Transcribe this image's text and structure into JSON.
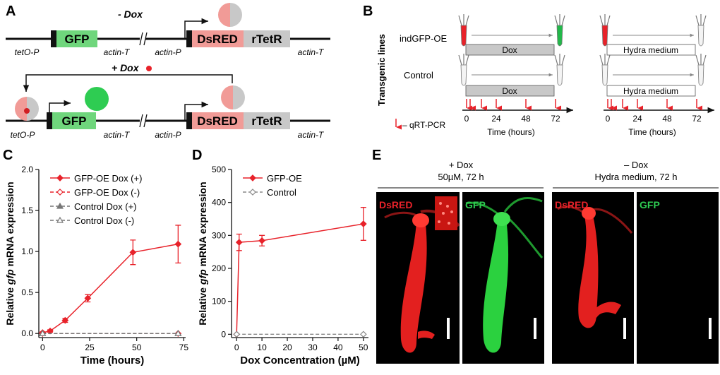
{
  "panel_letters": {
    "A": "A",
    "B": "B",
    "C": "C",
    "D": "D",
    "E": "E"
  },
  "panel_a": {
    "minus_dox": "- Dox",
    "plus_dox": "+ Dox",
    "gfp": "GFP",
    "dsred": "DsRED",
    "rtetr": "rTetR",
    "teto_p": "tetO-P",
    "actin_t": "actin-T",
    "actin_p": "actin-P"
  },
  "panel_b": {
    "side_label": "Transgenic lines",
    "row1": "indGFP-OE",
    "row2": "Control",
    "dox": "Dox",
    "hydra_medium": "Hydra medium",
    "legend": "– qRT-PCR",
    "xlabel": "Time (hours)",
    "ticks": [
      "0",
      "24",
      "48",
      "72"
    ]
  },
  "panel_e": {
    "plus_dox_l1": "+ Dox",
    "plus_dox_l2": "50µM, 72 h",
    "minus_dox_l1": "– Dox",
    "minus_dox_l2": "Hydra medium, 72 h",
    "tile_labels": [
      "DsRED",
      "GFP",
      "DsRED",
      "GFP"
    ]
  },
  "colors": {
    "red": "#e8222a",
    "green": "#2ecc52",
    "gfp_box": "#6fd67c",
    "dsred_box": "#f19b97",
    "rtetr_box": "#c8c8c8",
    "gray": "#888888"
  },
  "chart_data": [
    {
      "type": "line",
      "xlabel": "Time (hours)",
      "ylabel_prefix": "Relative ",
      "ylabel_italic": "gfp",
      "ylabel_suffix": " mRNA expression",
      "xlim": [
        -2,
        76
      ],
      "ylim": [
        -0.05,
        2.0
      ],
      "xticks": [
        0,
        25,
        50,
        75
      ],
      "yticks": [
        0.0,
        0.5,
        1.0,
        1.5,
        2.0
      ],
      "ytick_labels": [
        "0.0",
        "0.5",
        "1.0",
        "1.5",
        "2.0"
      ],
      "legend_position": "top-left",
      "series": [
        {
          "name": "GFP-OE Dox (+)",
          "style": "solid",
          "marker": "filled-diamond",
          "color": "#e8222a",
          "x": [
            0,
            4,
            12,
            24,
            48,
            72
          ],
          "y": [
            0.01,
            0.03,
            0.16,
            0.43,
            0.99,
            1.09
          ],
          "err": [
            0.01,
            0.015,
            0.025,
            0.045,
            0.15,
            0.23
          ]
        },
        {
          "name": "GFP-OE Dox (-)",
          "style": "dashed",
          "marker": "open-diamond",
          "color": "#e8222a",
          "x": [
            0,
            72
          ],
          "y": [
            0.0,
            0.0
          ],
          "err": [
            0,
            0
          ]
        },
        {
          "name": "Control Dox (+)",
          "style": "dashed",
          "marker": "filled-triangle",
          "color": "#777777",
          "x": [
            0,
            72
          ],
          "y": [
            0.0,
            0.0
          ],
          "err": [
            0,
            0
          ]
        },
        {
          "name": "Control Dox (-)",
          "style": "dashed",
          "marker": "open-triangle",
          "color": "#777777",
          "x": [
            0,
            72
          ],
          "y": [
            0.0,
            0.0
          ],
          "err": [
            0,
            0
          ]
        }
      ]
    },
    {
      "type": "line",
      "xlabel": "Dox Concentration (µM)",
      "ylabel_prefix": "Relative ",
      "ylabel_italic": "gfp",
      "ylabel_suffix": " mRNA expression",
      "xlim": [
        -2,
        52
      ],
      "ylim": [
        -10,
        500
      ],
      "xticks": [
        0,
        10,
        20,
        30,
        40,
        50
      ],
      "yticks": [
        0,
        100,
        200,
        300,
        400,
        500
      ],
      "ytick_labels": [
        "0",
        "100",
        "200",
        "300",
        "400",
        "500"
      ],
      "legend_position": "top-left",
      "series": [
        {
          "name": "GFP-OE",
          "style": "solid",
          "marker": "filled-diamond",
          "color": "#e8222a",
          "x": [
            0,
            1,
            10,
            50
          ],
          "y": [
            0,
            279,
            284,
            335
          ],
          "err": [
            0,
            25,
            16,
            50
          ]
        },
        {
          "name": "Control",
          "style": "dashed",
          "marker": "open-diamond",
          "color": "#888888",
          "x": [
            0,
            50
          ],
          "y": [
            0,
            0
          ],
          "err": [
            0,
            0
          ]
        }
      ]
    }
  ]
}
